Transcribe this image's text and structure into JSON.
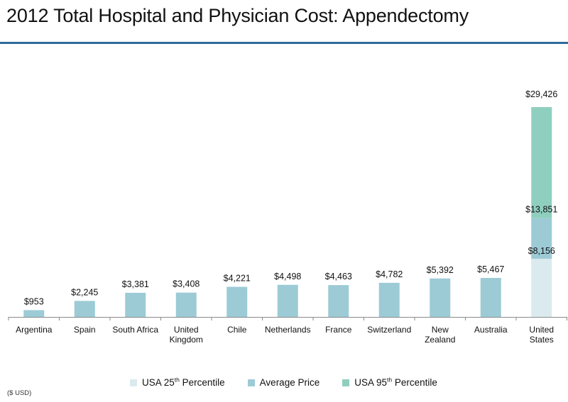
{
  "title": "2012 Total Hospital and Physician Cost: Appendectomy",
  "footnote": "($ USD)",
  "colors": {
    "title_rule": "#2f6b9a",
    "average": "#9ccbd6",
    "usa_p25": "#dbeaee",
    "usa_p95": "#8fcfbf",
    "axis": "#8a8a8a"
  },
  "legend": [
    {
      "text": "USA 25",
      "sup": "th",
      "suffix": " Percentile",
      "color_key": "usa_p25"
    },
    {
      "text": "Average Price",
      "sup": "",
      "suffix": "",
      "color_key": "average"
    },
    {
      "text": "USA  95",
      "sup": "th",
      "suffix": " Percentile",
      "color_key": "usa_p95"
    }
  ],
  "chart_data": {
    "type": "bar",
    "title": "2012 Total Hospital and Physician Cost: Appendectomy",
    "unit": "($ USD)",
    "grid": false,
    "legend_position": "bottom",
    "categories": [
      [
        "Argentina"
      ],
      [
        "Spain"
      ],
      [
        "South Africa"
      ],
      [
        "United",
        "Kingdom"
      ],
      [
        "Chile"
      ],
      [
        "Netherlands"
      ],
      [
        "France"
      ],
      [
        "Switzerland"
      ],
      [
        "New",
        "Zealand"
      ],
      [
        "Australia"
      ],
      [
        "United",
        "States"
      ]
    ],
    "series": [
      {
        "name": "Average Price",
        "values": [
          953,
          2245,
          3381,
          3408,
          4221,
          4498,
          4463,
          4782,
          5392,
          5467,
          null
        ],
        "labels": [
          "$953",
          "$2,245",
          "$3,381",
          "$3,408",
          "$4,221",
          "$4,498",
          "$4,463",
          "$4,782",
          "$5,392",
          "$5,467",
          ""
        ]
      }
    ],
    "usa_stack": [
      {
        "name": "USA 25th Percentile",
        "value": 8156,
        "label": "$8,156",
        "color_key": "usa_p25"
      },
      {
        "name": "Average Price",
        "value": 13851,
        "label": "$13,851",
        "color_key": "average"
      },
      {
        "name": "USA 95th Percentile",
        "value": 29426,
        "label": "$29,426",
        "color_key": "usa_p95"
      }
    ],
    "ylim": [
      0,
      29426
    ]
  }
}
